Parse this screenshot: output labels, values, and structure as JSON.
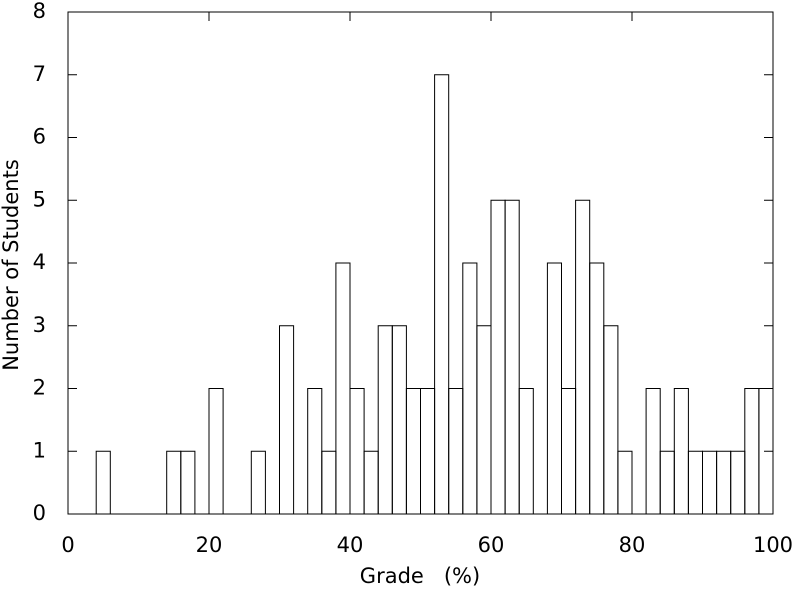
{
  "chart_data": {
    "type": "histogram",
    "xlabel": "Grade   (%)",
    "ylabel": "Number of Students",
    "bins": [
      0,
      2,
      4,
      6,
      8,
      10,
      12,
      14,
      16,
      18,
      20,
      22,
      24,
      26,
      28,
      30,
      32,
      34,
      36,
      38,
      40,
      42,
      44,
      46,
      48,
      50,
      52,
      54,
      56,
      58,
      60,
      62,
      64,
      66,
      68,
      70,
      72,
      74,
      76,
      78,
      80,
      82,
      84,
      86,
      88,
      90,
      92,
      94,
      96,
      98,
      100
    ],
    "values": [
      0,
      0,
      1,
      0,
      0,
      0,
      0,
      1,
      1,
      0,
      2,
      0,
      0,
      1,
      0,
      3,
      0,
      2,
      1,
      4,
      2,
      1,
      3,
      3,
      2,
      2,
      7,
      2,
      4,
      3,
      5,
      5,
      2,
      0,
      4,
      2,
      5,
      4,
      3,
      1,
      0,
      2,
      1,
      2,
      1,
      1,
      1,
      1,
      2,
      2
    ],
    "color": "#000000",
    "xlim": [
      0,
      100
    ],
    "xticks": [
      0,
      20,
      40,
      60,
      80,
      100
    ],
    "ylim": [
      0,
      8
    ],
    "yticks": [
      0,
      1,
      2,
      3,
      4,
      5,
      6,
      7,
      8
    ]
  }
}
